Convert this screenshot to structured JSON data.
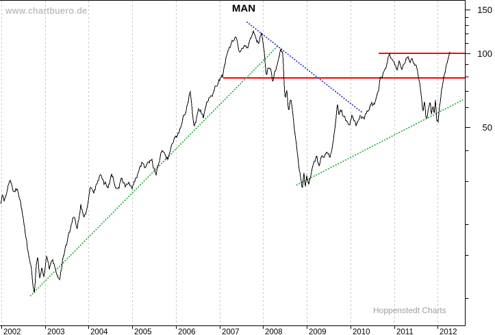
{
  "header": {
    "watermark": "www.chartbuero.de",
    "title": "MAN"
  },
  "footer": {
    "note": "Hoppenstedt Charts"
  },
  "chart_data": {
    "type": "line",
    "title": "MAN",
    "ylabel": "",
    "xlabel": "",
    "legend": "none",
    "grid": "vertical-dashed-only",
    "x_axis": {
      "years": [
        2002,
        2003,
        2004,
        2005,
        2006,
        2007,
        2008,
        2009,
        2010,
        2011,
        2012
      ],
      "labels": [
        "2002",
        "2003",
        "2004",
        "2005",
        "2006",
        "2007",
        "2008",
        "2009",
        "2010",
        "2011",
        "2012"
      ]
    },
    "y_axis": {
      "side": "right",
      "scale": "log",
      "range": [
        7.8,
        163
      ],
      "ticks": [
        10,
        15,
        20,
        30,
        40,
        50,
        60,
        70,
        80,
        90,
        100,
        110,
        120,
        130,
        140,
        150
      ],
      "labeled_ticks": [
        50,
        100,
        150
      ],
      "labels": [
        "50",
        "100",
        "150"
      ]
    },
    "colors": {
      "price": "#000000",
      "uptrend": "#12a32b",
      "downtrend": "#1c1ccd",
      "level": "#fe0000",
      "gridline": "#c9c9c9",
      "border": "#000000"
    },
    "series": [
      {
        "name": "MAN share price",
        "color": "#000000",
        "points": [
          [
            2001.97,
            23.5
          ],
          [
            2002.02,
            26.0
          ],
          [
            2002.06,
            24.5
          ],
          [
            2002.13,
            27.5
          ],
          [
            2002.19,
            30.0
          ],
          [
            2002.24,
            28.0
          ],
          [
            2002.3,
            26.5
          ],
          [
            2002.36,
            28.0
          ],
          [
            2002.44,
            24.0
          ],
          [
            2002.5,
            21.0
          ],
          [
            2002.56,
            18.0
          ],
          [
            2002.62,
            15.0
          ],
          [
            2002.68,
            13.5
          ],
          [
            2002.73,
            11.2
          ],
          [
            2002.76,
            10.4
          ],
          [
            2002.8,
            13.8
          ],
          [
            2002.84,
            14.8
          ],
          [
            2002.88,
            11.9
          ],
          [
            2002.93,
            13.5
          ],
          [
            2002.97,
            12.5
          ],
          [
            2003.03,
            15.5
          ],
          [
            2003.1,
            12.9
          ],
          [
            2003.17,
            14.3
          ],
          [
            2003.25,
            13.2
          ],
          [
            2003.33,
            11.8
          ],
          [
            2003.42,
            14.8
          ],
          [
            2003.5,
            16.5
          ],
          [
            2003.58,
            18.5
          ],
          [
            2003.66,
            21.6
          ],
          [
            2003.74,
            18.9
          ],
          [
            2003.82,
            23.8
          ],
          [
            2003.89,
            22.3
          ],
          [
            2003.96,
            23.2
          ],
          [
            2004.05,
            29.2
          ],
          [
            2004.12,
            26.5
          ],
          [
            2004.2,
            29.8
          ],
          [
            2004.28,
            32.1
          ],
          [
            2004.36,
            29.6
          ],
          [
            2004.44,
            29.0
          ],
          [
            2004.52,
            31.5
          ],
          [
            2004.6,
            28.4
          ],
          [
            2004.67,
            27.7
          ],
          [
            2004.75,
            30.2
          ],
          [
            2004.83,
            28.6
          ],
          [
            2004.92,
            29.6
          ],
          [
            2005.0,
            28.6
          ],
          [
            2005.1,
            31.5
          ],
          [
            2005.22,
            36.1
          ],
          [
            2005.31,
            33.1
          ],
          [
            2005.38,
            35.0
          ],
          [
            2005.45,
            35.9
          ],
          [
            2005.55,
            32.7
          ],
          [
            2005.62,
            37.0
          ],
          [
            2005.69,
            42.0
          ],
          [
            2005.81,
            38.0
          ],
          [
            2005.92,
            42.5
          ],
          [
            2006.0,
            45.0
          ],
          [
            2006.08,
            47.2
          ],
          [
            2006.16,
            54.2
          ],
          [
            2006.25,
            60.0
          ],
          [
            2006.33,
            69.2
          ],
          [
            2006.41,
            50.9
          ],
          [
            2006.5,
            56.5
          ],
          [
            2006.56,
            59.5
          ],
          [
            2006.63,
            54.5
          ],
          [
            2006.72,
            62.7
          ],
          [
            2006.82,
            67.0
          ],
          [
            2006.91,
            73.7
          ],
          [
            2006.99,
            76.0
          ],
          [
            2007.08,
            79.4
          ],
          [
            2007.15,
            92.5
          ],
          [
            2007.22,
            100.0
          ],
          [
            2007.28,
            108.5
          ],
          [
            2007.38,
            115.7
          ],
          [
            2007.46,
            101.7
          ],
          [
            2007.56,
            109.7
          ],
          [
            2007.64,
            104.9
          ],
          [
            2007.72,
            112.0
          ],
          [
            2007.78,
            122.9
          ],
          [
            2007.84,
            115.0
          ],
          [
            2007.9,
            111.0
          ],
          [
            2007.96,
            119.4
          ],
          [
            2008.02,
            101.7
          ],
          [
            2008.07,
            80.3
          ],
          [
            2008.12,
            86.0
          ],
          [
            2008.17,
            89.9
          ],
          [
            2008.22,
            80.3
          ],
          [
            2008.28,
            88.0
          ],
          [
            2008.34,
            93.4
          ],
          [
            2008.4,
            105.9
          ],
          [
            2008.45,
            98.8
          ],
          [
            2008.5,
            64.4
          ],
          [
            2008.54,
            70.0
          ],
          [
            2008.58,
            59.0
          ],
          [
            2008.63,
            65.0
          ],
          [
            2008.68,
            55.0
          ],
          [
            2008.72,
            48.6
          ],
          [
            2008.77,
            41.0
          ],
          [
            2008.82,
            34.0
          ],
          [
            2008.86,
            30.5
          ],
          [
            2008.9,
            27.3
          ],
          [
            2008.93,
            32.8
          ],
          [
            2008.96,
            28.5
          ],
          [
            2009.0,
            31.0
          ],
          [
            2009.05,
            28.8
          ],
          [
            2009.1,
            31.1
          ],
          [
            2009.16,
            34.0
          ],
          [
            2009.22,
            36.5
          ],
          [
            2009.28,
            34.0
          ],
          [
            2009.34,
            38.5
          ],
          [
            2009.4,
            36.0
          ],
          [
            2009.46,
            39.5
          ],
          [
            2009.52,
            37.5
          ],
          [
            2009.57,
            40.3
          ],
          [
            2009.62,
            46.0
          ],
          [
            2009.66,
            53.0
          ],
          [
            2009.7,
            61.1
          ],
          [
            2009.74,
            55.5
          ],
          [
            2009.79,
            58.5
          ],
          [
            2009.85,
            55.0
          ],
          [
            2009.91,
            53.0
          ],
          [
            2009.97,
            51.5
          ],
          [
            2010.03,
            54.0
          ],
          [
            2010.08,
            52.0
          ],
          [
            2010.13,
            50.4
          ],
          [
            2010.2,
            55.0
          ],
          [
            2010.26,
            53.5
          ],
          [
            2010.32,
            52.5
          ],
          [
            2010.4,
            57.5
          ],
          [
            2010.47,
            62.3
          ],
          [
            2010.53,
            60.5
          ],
          [
            2010.6,
            64.5
          ],
          [
            2010.65,
            69.5
          ],
          [
            2010.68,
            78.0
          ],
          [
            2010.73,
            82.0
          ],
          [
            2010.78,
            86.0
          ],
          [
            2010.84,
            90.0
          ],
          [
            2010.89,
            96.8
          ],
          [
            2010.94,
            90.0
          ],
          [
            2011.0,
            92.5
          ],
          [
            2011.06,
            86.0
          ],
          [
            2011.12,
            92.5
          ],
          [
            2011.18,
            85.7
          ],
          [
            2011.24,
            92.0
          ],
          [
            2011.3,
            99.0
          ],
          [
            2011.36,
            94.0
          ],
          [
            2011.42,
            96.7
          ],
          [
            2011.48,
            91.0
          ],
          [
            2011.52,
            86.6
          ],
          [
            2011.57,
            78.0
          ],
          [
            2011.6,
            71.4
          ],
          [
            2011.63,
            64.0
          ],
          [
            2011.66,
            56.5
          ],
          [
            2011.7,
            62.0
          ],
          [
            2011.73,
            54.0
          ],
          [
            2011.76,
            52.6
          ],
          [
            2011.8,
            60.0
          ],
          [
            2011.83,
            62.5
          ],
          [
            2011.86,
            55.5
          ],
          [
            2011.89,
            61.5
          ],
          [
            2011.92,
            57.5
          ],
          [
            2011.95,
            64.0
          ],
          [
            2011.98,
            54.5
          ],
          [
            2012.01,
            53.2
          ],
          [
            2012.04,
            60.0
          ],
          [
            2012.07,
            66.0
          ],
          [
            2012.1,
            72.0
          ],
          [
            2012.14,
            79.5
          ],
          [
            2012.17,
            82.0
          ],
          [
            2012.2,
            88.0
          ],
          [
            2012.24,
            95.0
          ],
          [
            2012.28,
            101.5
          ]
        ]
      }
    ],
    "trendlines": [
      {
        "name": "uptrend-2002-2008",
        "color": "#12a32b",
        "style": "dotted",
        "from": [
          2002.66,
          10.2
        ],
        "to": [
          2008.34,
          107.0
        ]
      },
      {
        "name": "downtrend-2007-2010",
        "color": "#1c1ccd",
        "style": "dotted",
        "from": [
          2007.62,
          134.0
        ],
        "to": [
          2010.28,
          57.0
        ]
      },
      {
        "name": "uptrend-2008-2012",
        "color": "#12a32b",
        "style": "dotted",
        "from": [
          2008.76,
          28.9
        ],
        "to": [
          2012.58,
          64.4
        ]
      }
    ],
    "levels": [
      {
        "name": "resistance-100",
        "color": "#fe0000",
        "value": 100,
        "from": 2010.65,
        "to": 2012.62
      },
      {
        "name": "support-79",
        "color": "#fe0000",
        "value": 79,
        "from": 2007.08,
        "to": 2012.62
      }
    ]
  }
}
